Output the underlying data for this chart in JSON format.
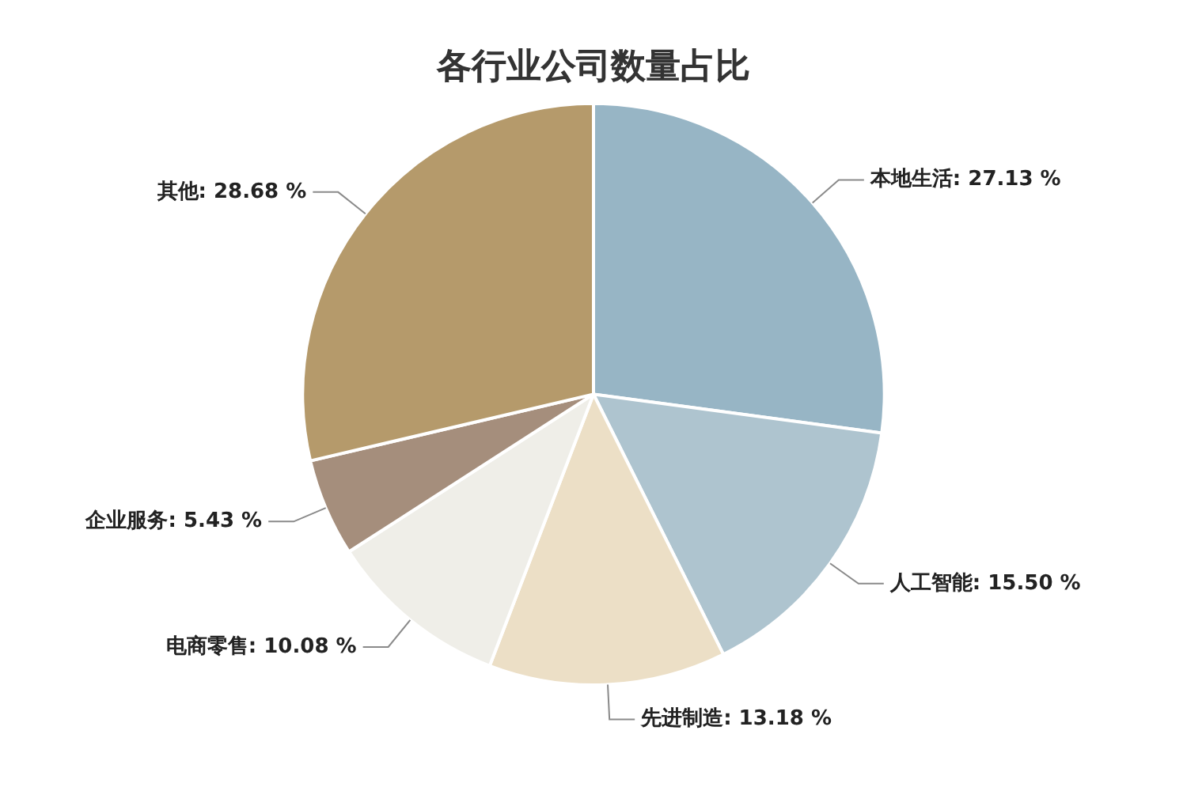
{
  "chart_data": {
    "type": "pie",
    "title": "各行业公司数量占比",
    "categories": [
      "本地生活",
      "人工智能",
      "先进制造",
      "电商零售",
      "企业服务",
      "其他"
    ],
    "values": [
      27.13,
      15.5,
      13.18,
      10.08,
      5.43,
      28.68
    ],
    "value_labels": [
      "27.13 %",
      "15.50 %",
      "13.18 %",
      "10.08 %",
      "5.43 %",
      "28.68 %"
    ],
    "colors": [
      "#97b5c5",
      "#aec4cf",
      "#ecdfc6",
      "#efeee8",
      "#a58e7c",
      "#b59a6b"
    ],
    "legend": false
  }
}
